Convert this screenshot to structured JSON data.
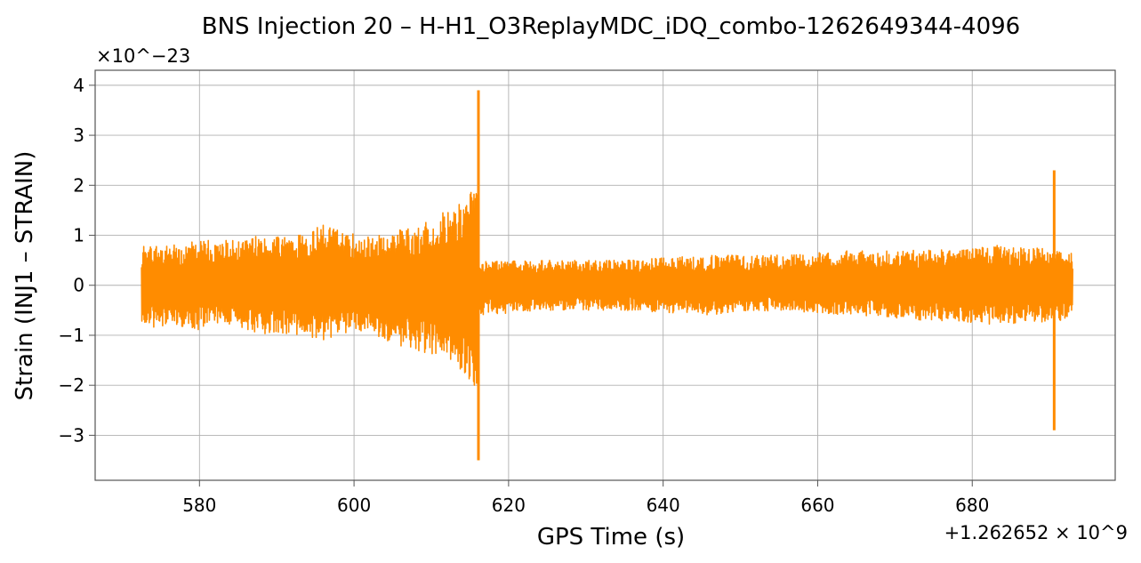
{
  "chart_data": {
    "type": "line",
    "title": "BNS Injection 20 – H-H1_O3ReplayMDC_iDQ_combo-1262649344-4096",
    "xlabel": "GPS Time (s)",
    "ylabel": "Strain (INJ1 – STRAIN)",
    "x_offset_label": "+1.262652 × 10^9",
    "y_scale_label": "×10^−23",
    "xlim": [
      566.5,
      698.5
    ],
    "ylim": [
      -3.9,
      4.3
    ],
    "x_ticks": [
      580,
      600,
      620,
      640,
      660,
      680
    ],
    "y_ticks": [
      -3,
      -2,
      -1,
      0,
      1,
      2,
      3,
      4
    ],
    "x_tick_labels": [
      "580",
      "600",
      "620",
      "640",
      "660",
      "680"
    ],
    "y_tick_labels": [
      "−3",
      "−2",
      "−1",
      "0",
      "1",
      "2",
      "3",
      "4"
    ],
    "grid": true,
    "legend": "none",
    "series": [
      {
        "color": "#ff8c00",
        "segments": [
          {
            "x": [
              572.5,
              599.9
            ],
            "amplitude_lower": [
              -0.9,
              -0.8,
              -0.9,
              -0.8,
              -1.0,
              -1.0,
              -1.1,
              -0.9
            ],
            "amplitude_upper": [
              0.8,
              0.8,
              0.9,
              0.9,
              1.0,
              1.0,
              1.2,
              1.1
            ]
          },
          {
            "x": [
              600.0,
              616.0
            ],
            "amplitude_lower": [
              -0.9,
              -1.0,
              -1.2,
              -1.3,
              -1.4,
              -1.6,
              -2.1
            ],
            "amplitude_upper": [
              0.9,
              1.0,
              1.1,
              1.2,
              1.4,
              1.6,
              2.0
            ]
          },
          {
            "x": [
              616.1,
              693.0
            ],
            "amplitude_lower": [
              -0.6,
              -0.5,
              -0.5,
              -0.6,
              -0.5,
              -0.6,
              -0.7,
              -0.8,
              -0.7
            ],
            "amplitude_upper": [
              0.5,
              0.5,
              0.5,
              0.6,
              0.6,
              0.7,
              0.7,
              0.8,
              0.7
            ]
          }
        ],
        "spikes": [
          {
            "x": 616.1,
            "min": -3.5,
            "max": 3.9
          },
          {
            "x": 690.6,
            "min": -2.9,
            "max": 2.3
          }
        ]
      }
    ]
  }
}
